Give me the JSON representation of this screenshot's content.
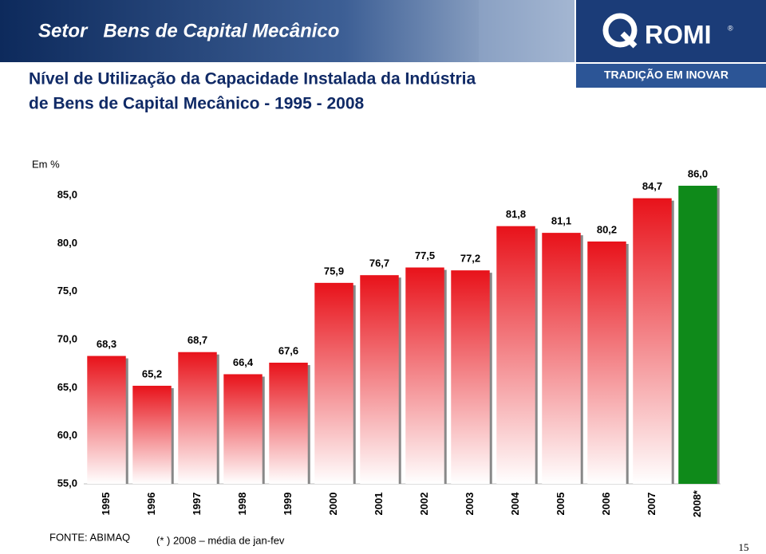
{
  "header": {
    "title": "Setor   Bens de Capital Mecânico",
    "subtitle": [
      "Nível de Utilização da Capacidade Instalada da Indústria",
      "de Bens de Capital Mecânico - 1995 - 2008"
    ]
  },
  "logo": {
    "brand": "ROMI",
    "mark": "®",
    "tagline": "TRADIÇÃO EM INOVAR"
  },
  "chart_data": {
    "type": "bar",
    "y_label": "Em %",
    "categories": [
      "1995",
      "1996",
      "1997",
      "1998",
      "1999",
      "2000",
      "2001",
      "2002",
      "2003",
      "2004",
      "2005",
      "2006",
      "2007",
      "2008*"
    ],
    "values": [
      68.3,
      65.2,
      68.7,
      66.4,
      67.6,
      75.9,
      76.7,
      77.5,
      77.2,
      81.8,
      81.1,
      80.2,
      84.7,
      86.0
    ],
    "value_labels": [
      "68,3",
      "65,2",
      "68,7",
      "66,4",
      "67,6",
      "75,9",
      "76,7",
      "77,5",
      "77,2",
      "81,8",
      "81,1",
      "80,2",
      "84,7",
      "86,0"
    ],
    "colors": [
      "#e8121a",
      "#e8121a",
      "#e8121a",
      "#e8121a",
      "#e8121a",
      "#e8121a",
      "#e8121a",
      "#e8121a",
      "#e8121a",
      "#e8121a",
      "#e8121a",
      "#e8121a",
      "#e8121a",
      "#0f8a1a"
    ],
    "ylim": [
      55,
      86
    ],
    "yticks": [
      {
        "value": 55,
        "label": "55,0"
      },
      {
        "value": 60,
        "label": "60,0"
      },
      {
        "value": 65,
        "label": "65,0"
      },
      {
        "value": 70,
        "label": "70,0"
      },
      {
        "value": 75,
        "label": "75,0"
      },
      {
        "value": 80,
        "label": "80,0"
      },
      {
        "value": 85,
        "label": "85,0"
      }
    ]
  },
  "footer": {
    "source": "FONTE: ABIMAQ",
    "note": "(* ) 2008 – média de jan-fev",
    "page": "15"
  }
}
